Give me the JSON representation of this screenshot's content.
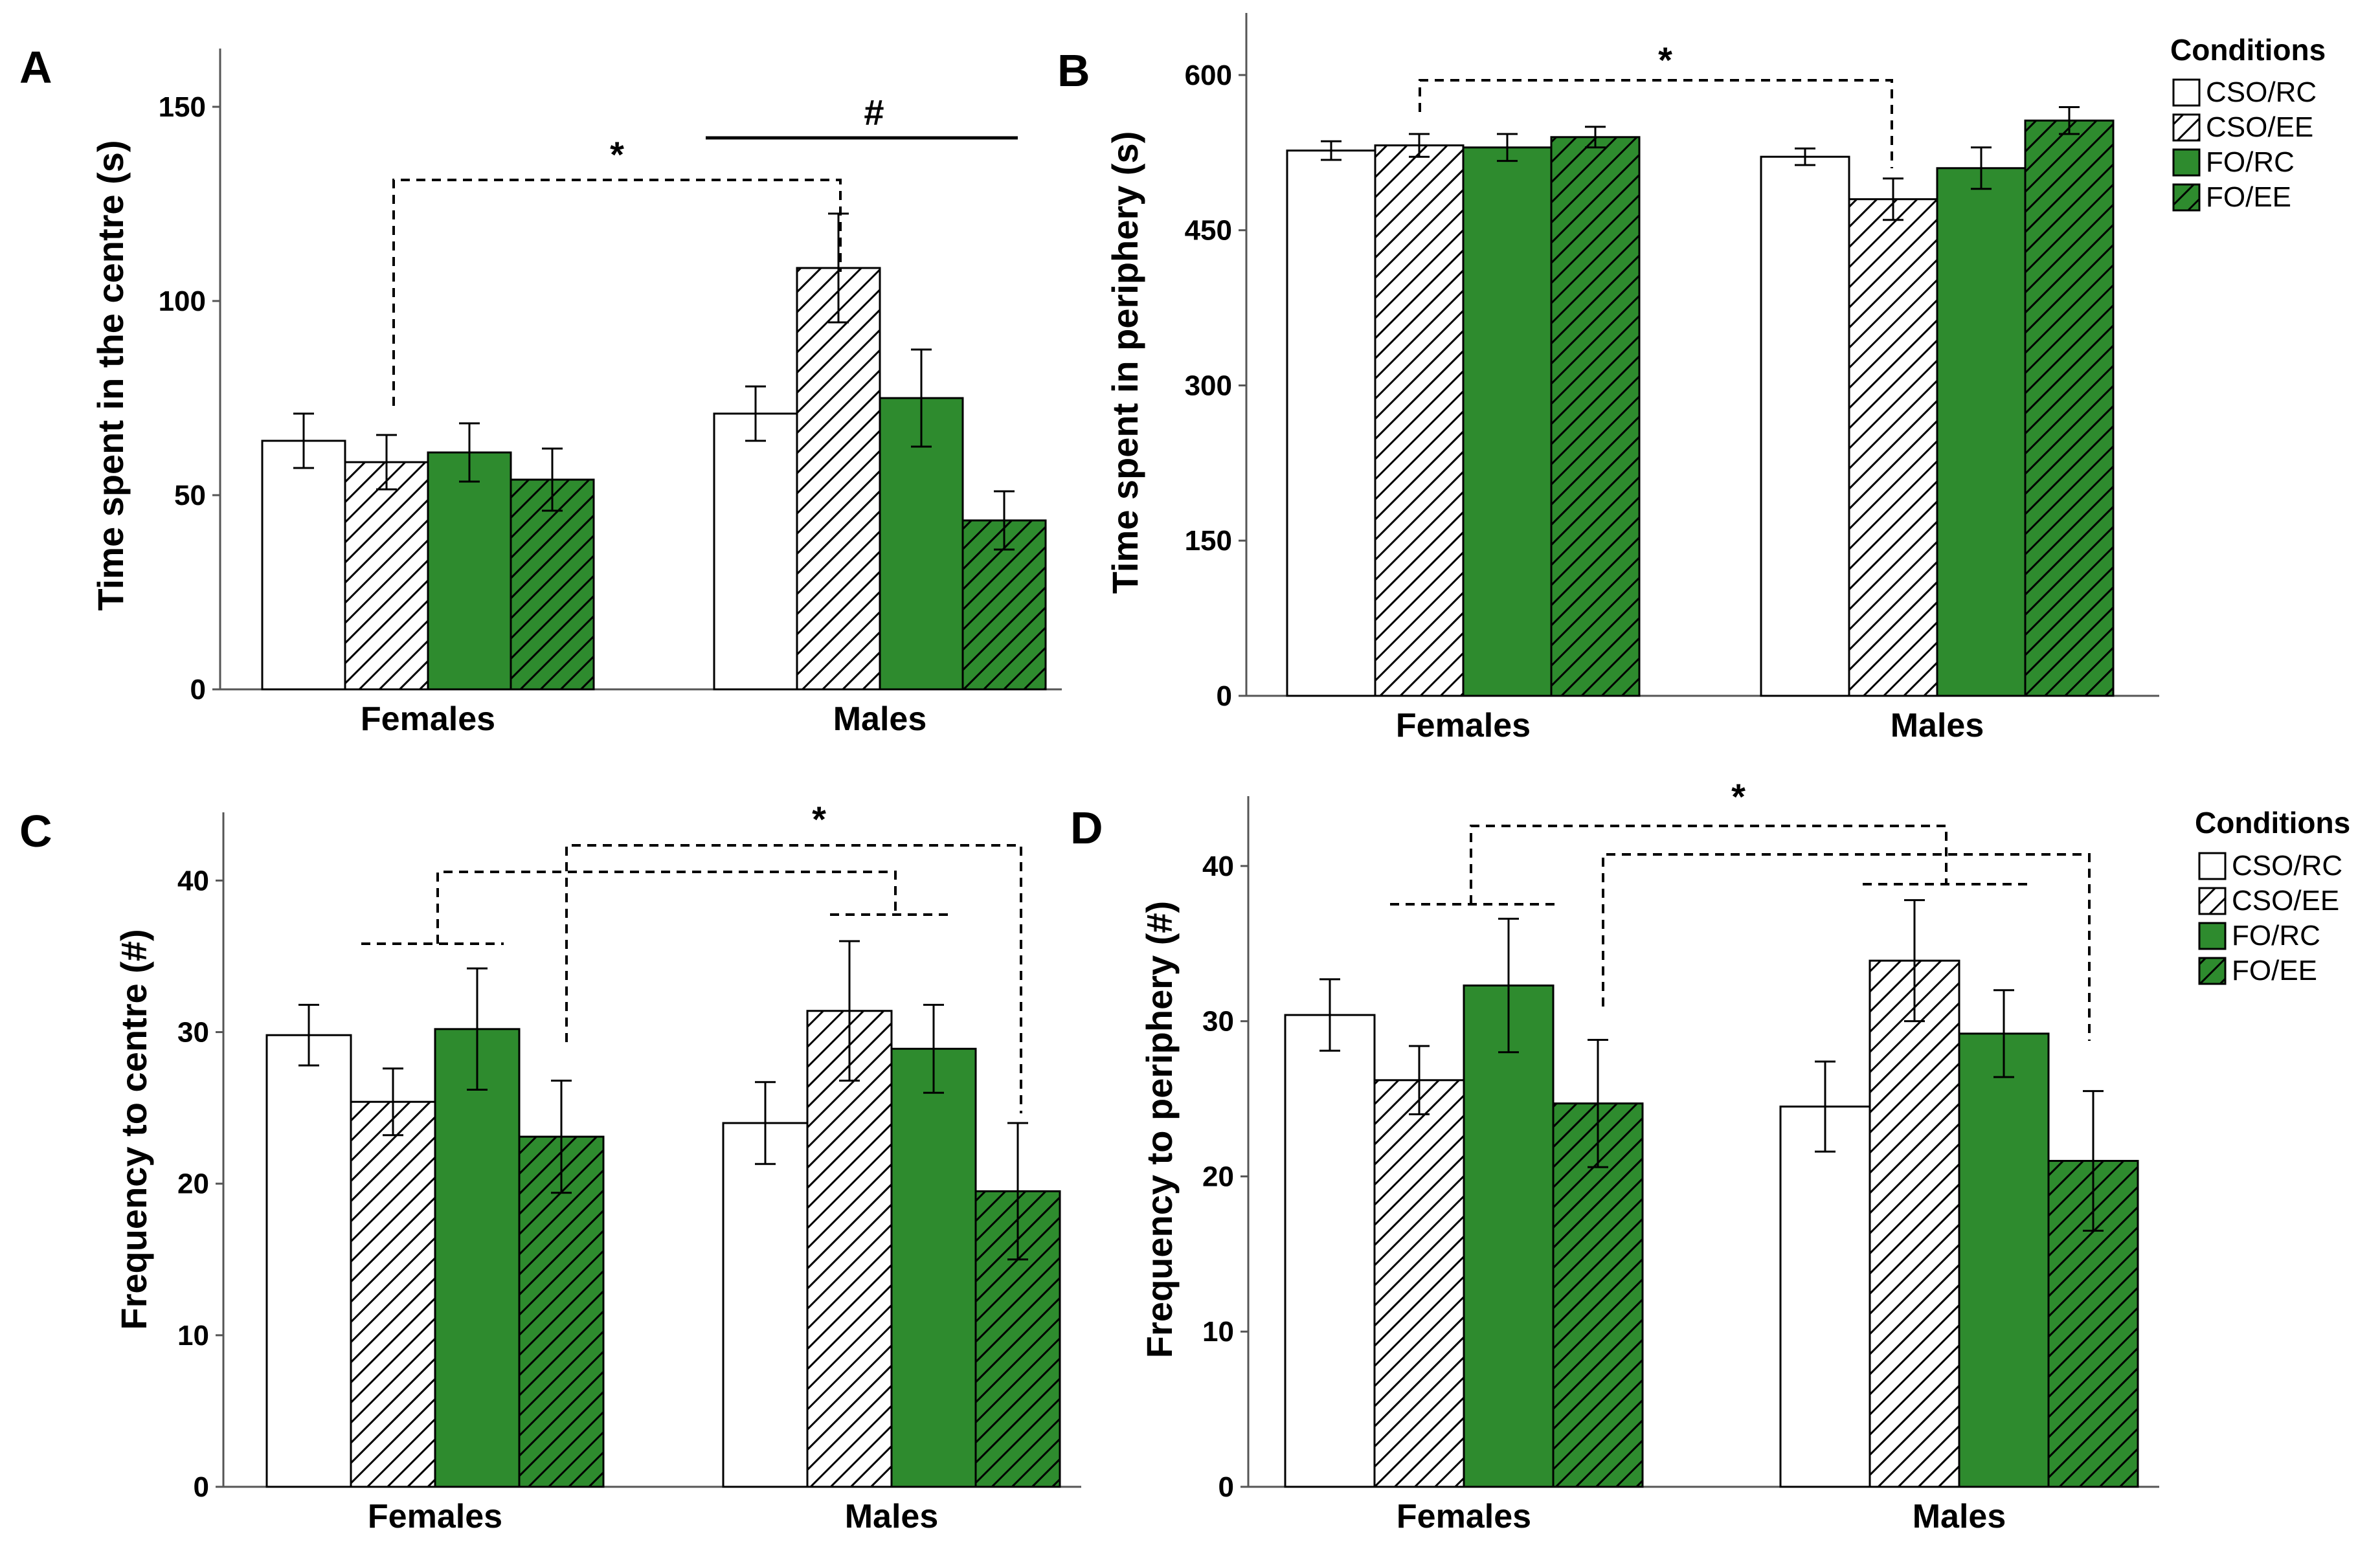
{
  "colors": {
    "green": "#2e8b2e",
    "white": "#ffffff",
    "stroke": "#000000"
  },
  "legend": {
    "title": "Conditions",
    "entries": [
      {
        "label": "CSO/RC",
        "fill": "white",
        "hatch": false
      },
      {
        "label": "CSO/EE",
        "fill": "white",
        "hatch": true
      },
      {
        "label": "FO/RC",
        "fill": "green",
        "hatch": false
      },
      {
        "label": "FO/EE",
        "fill": "green",
        "hatch": true
      }
    ]
  },
  "chart_data": [
    {
      "panel": "A",
      "type": "bar",
      "ylabel": "Time spent in the centre (s)",
      "ylim": [
        0,
        165
      ],
      "yticks": [
        0,
        50,
        100,
        150
      ],
      "categories": [
        "Females",
        "Males"
      ],
      "series": [
        {
          "name": "CSO/RC",
          "values": [
            64,
            71
          ],
          "errors": [
            7,
            7
          ]
        },
        {
          "name": "CSO/EE",
          "values": [
            58.5,
            108.5
          ],
          "errors": [
            7,
            14
          ]
        },
        {
          "name": "FO/RC",
          "values": [
            61,
            75
          ],
          "errors": [
            7.5,
            12.5
          ]
        },
        {
          "name": "FO/EE",
          "values": [
            54,
            43.5
          ],
          "errors": [
            8,
            7.5
          ]
        }
      ],
      "annotations": [
        {
          "symbol": "*",
          "style": "dashed-bracket",
          "from": [
            0,
            1
          ],
          "to": [
            1,
            1
          ]
        },
        {
          "symbol": "#",
          "style": "solid-line",
          "over": "Males"
        }
      ]
    },
    {
      "panel": "B",
      "type": "bar",
      "ylabel": "Time spent in periphery (s)",
      "ylim": [
        0,
        660
      ],
      "yticks": [
        0,
        150,
        300,
        450,
        600
      ],
      "categories": [
        "Females",
        "Males"
      ],
      "series": [
        {
          "name": "CSO/RC",
          "values": [
            527,
            521
          ],
          "errors": [
            9,
            8
          ]
        },
        {
          "name": "CSO/EE",
          "values": [
            532,
            480
          ],
          "errors": [
            11,
            20
          ]
        },
        {
          "name": "FO/RC",
          "values": [
            530,
            510
          ],
          "errors": [
            13,
            20
          ]
        },
        {
          "name": "FO/EE",
          "values": [
            540,
            556
          ],
          "errors": [
            10,
            13
          ]
        }
      ],
      "annotations": [
        {
          "symbol": "*",
          "style": "dashed-bracket",
          "from": [
            0,
            1
          ],
          "to": [
            1,
            1
          ]
        }
      ]
    },
    {
      "panel": "C",
      "type": "bar",
      "ylabel": "Frequency to centre (#)",
      "ylim": [
        0,
        44.5
      ],
      "yticks": [
        0,
        10,
        20,
        30,
        40
      ],
      "categories": [
        "Females",
        "Males"
      ],
      "series": [
        {
          "name": "CSO/RC",
          "values": [
            29.8,
            24
          ],
          "errors": [
            2,
            2.7
          ]
        },
        {
          "name": "CSO/EE",
          "values": [
            25.4,
            31.4
          ],
          "errors": [
            2.2,
            4.6
          ]
        },
        {
          "name": "FO/RC",
          "values": [
            30.2,
            28.9
          ],
          "errors": [
            4,
            2.9
          ]
        },
        {
          "name": "FO/EE",
          "values": [
            23.1,
            19.5
          ],
          "errors": [
            3.7,
            4.5
          ]
        }
      ],
      "annotations": [
        {
          "symbol": "*",
          "style": "nested-dashed-brackets"
        }
      ]
    },
    {
      "panel": "D",
      "type": "bar",
      "ylabel": "Frequency to periphery (#)",
      "ylim": [
        0,
        44.5
      ],
      "yticks": [
        0,
        10,
        20,
        30,
        40
      ],
      "categories": [
        "Females",
        "Males"
      ],
      "series": [
        {
          "name": "CSO/RC",
          "values": [
            30.4,
            24.5
          ],
          "errors": [
            2.3,
            2.9
          ]
        },
        {
          "name": "CSO/EE",
          "values": [
            26.2,
            33.9
          ],
          "errors": [
            2.2,
            3.9
          ]
        },
        {
          "name": "FO/RC",
          "values": [
            32.3,
            29.2
          ],
          "errors": [
            4.3,
            2.8
          ]
        },
        {
          "name": "FO/EE",
          "values": [
            24.7,
            21
          ],
          "errors": [
            4.1,
            4.5
          ]
        }
      ],
      "annotations": [
        {
          "symbol": "*",
          "style": "nested-dashed-brackets"
        }
      ]
    }
  ]
}
